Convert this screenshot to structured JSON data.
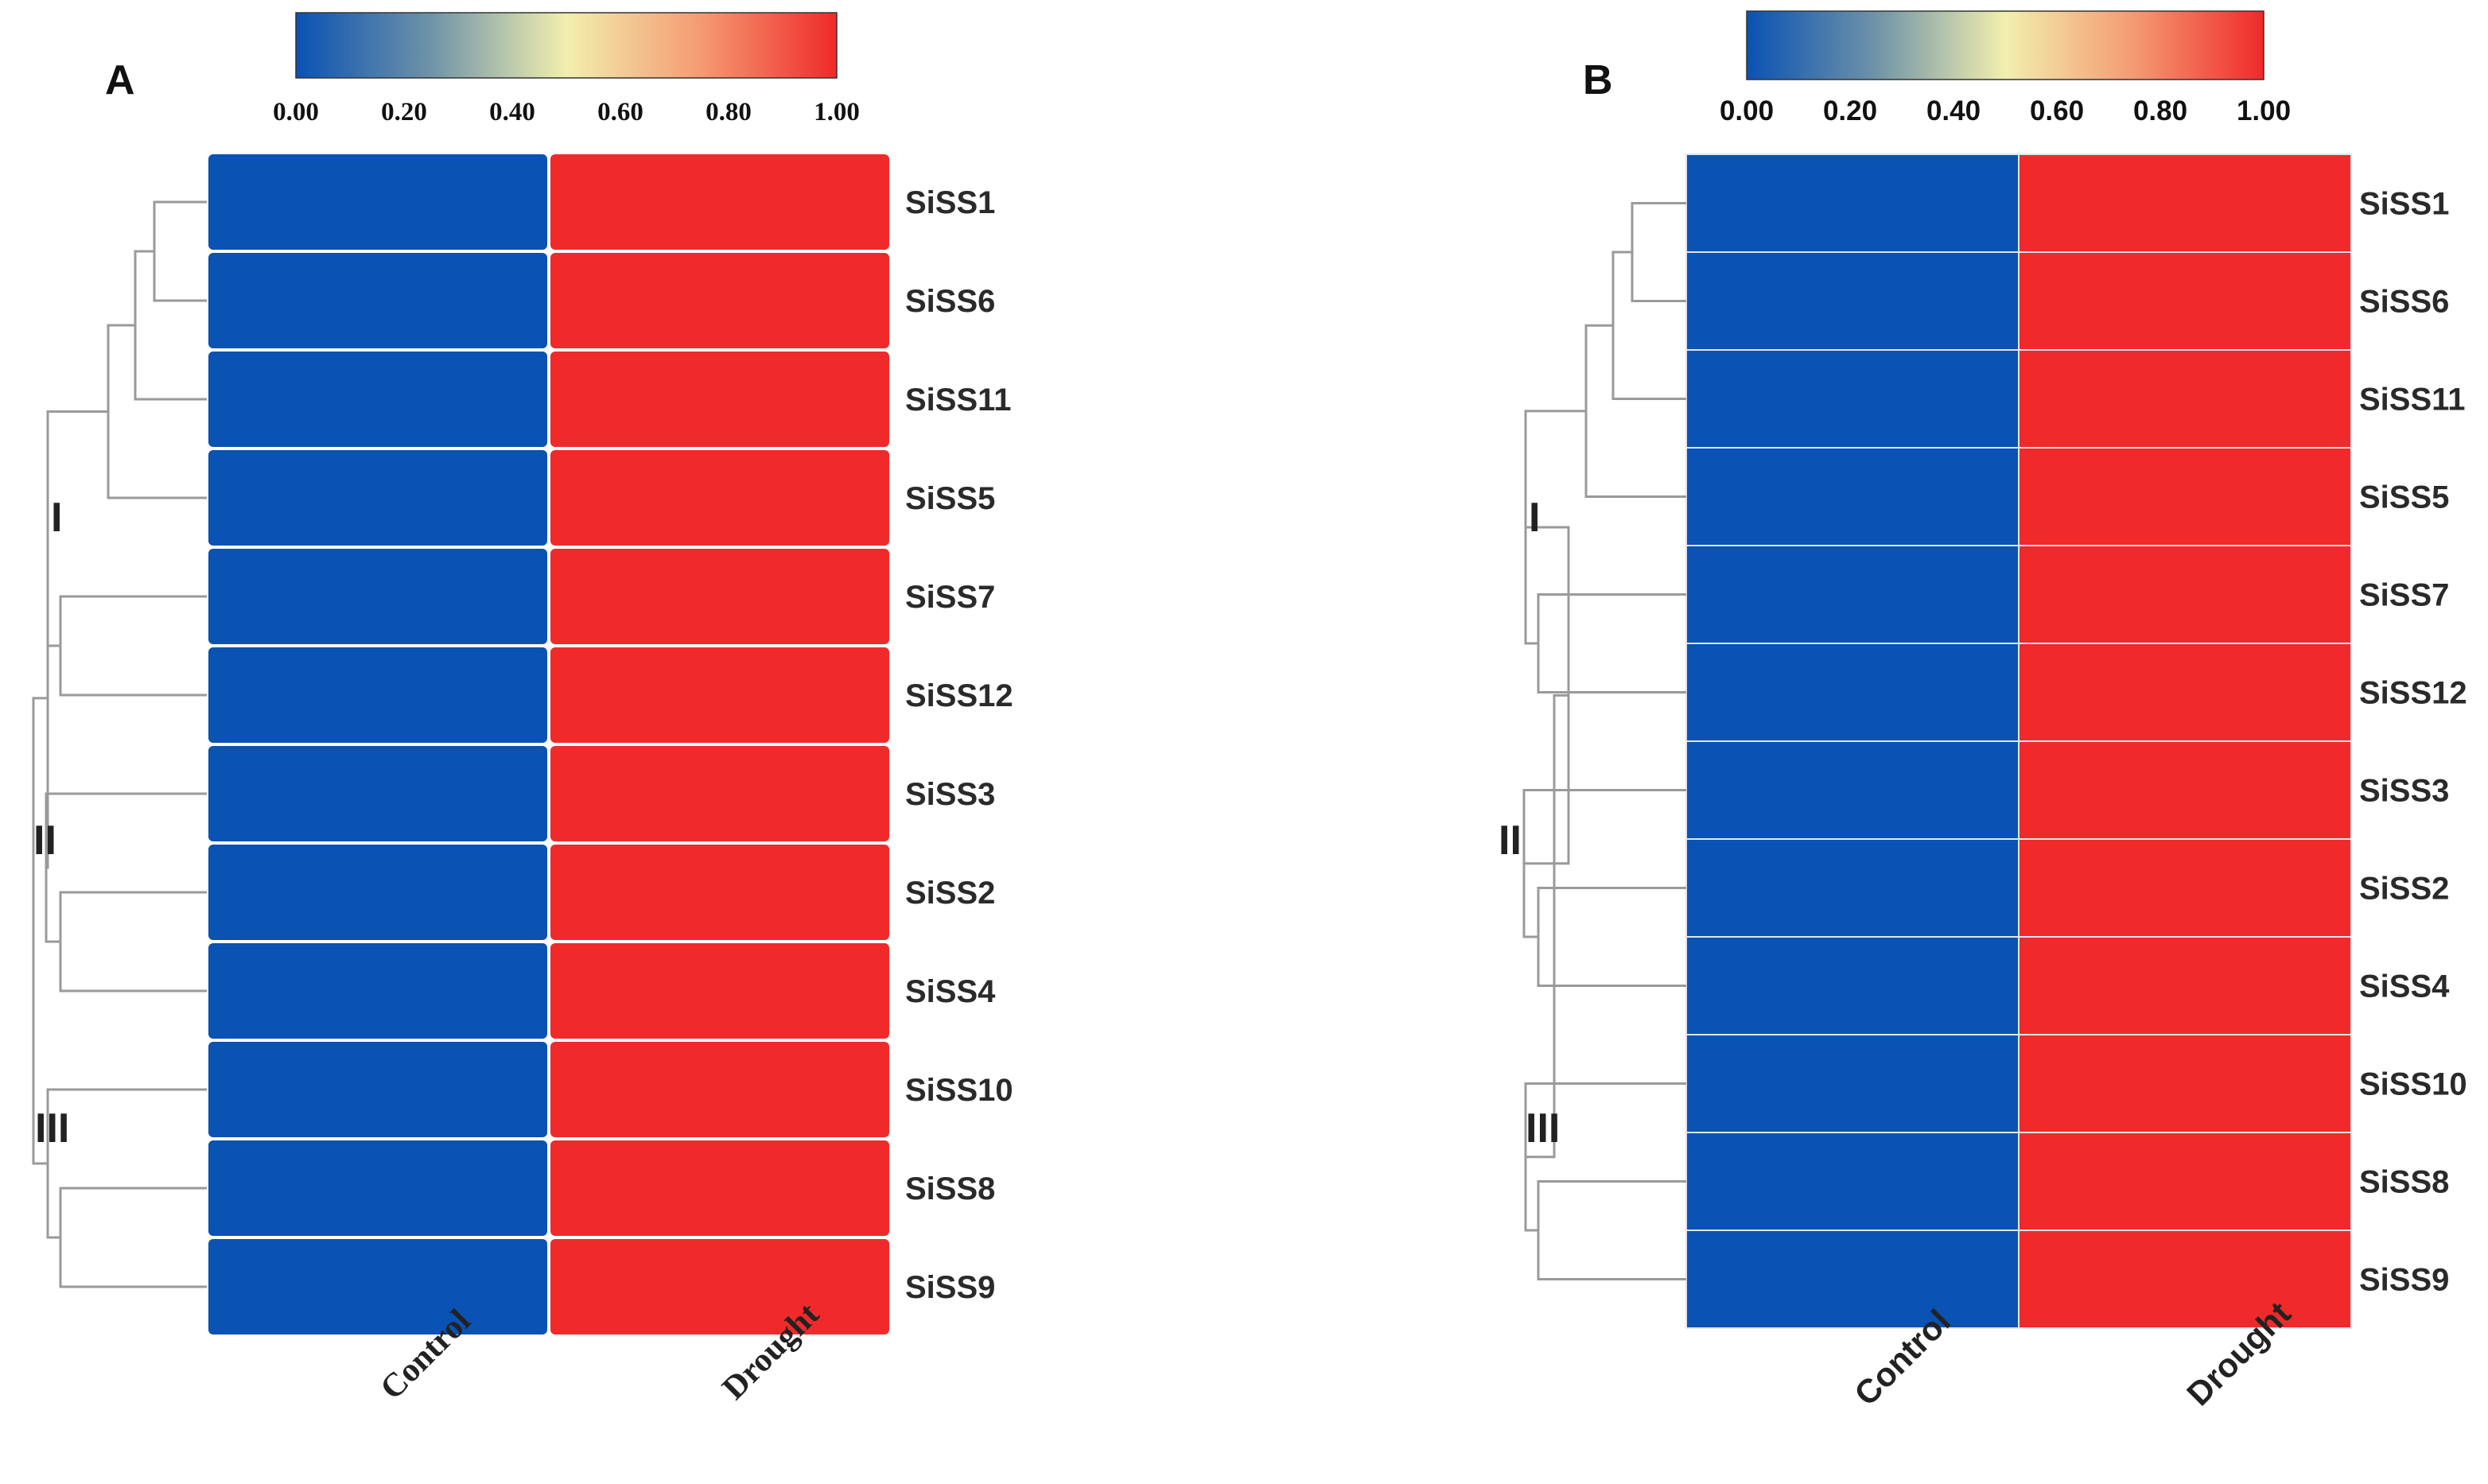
{
  "chart_data": [
    {
      "type": "heatmap",
      "panel": "A",
      "columns": [
        "Control",
        "Drought"
      ],
      "rows": [
        "SiSS1",
        "SiSS6",
        "SiSS11",
        "SiSS5",
        "SiSS7",
        "SiSS12",
        "SiSS3",
        "SiSS2",
        "SiSS4",
        "SiSS10",
        "SiSS8",
        "SiSS9"
      ],
      "values": [
        [
          0,
          1
        ],
        [
          0,
          1
        ],
        [
          0,
          1
        ],
        [
          0,
          1
        ],
        [
          0,
          1
        ],
        [
          0,
          1
        ],
        [
          0,
          1
        ],
        [
          0,
          1
        ],
        [
          0,
          1
        ],
        [
          0,
          1
        ],
        [
          0,
          1
        ],
        [
          0,
          1
        ]
      ],
      "colorbar": {
        "ticks": [
          "0.00",
          "0.20",
          "0.40",
          "0.60",
          "0.80",
          "1.00"
        ],
        "range": [
          0,
          1
        ],
        "colors": [
          "#0a52b3",
          "#f2efae",
          "#f02a2a"
        ]
      },
      "clades": [
        "I",
        "II",
        "III"
      ]
    },
    {
      "type": "heatmap",
      "panel": "B",
      "columns": [
        "Control",
        "Drought"
      ],
      "rows": [
        "SiSS1",
        "SiSS6",
        "SiSS11",
        "SiSS5",
        "SiSS7",
        "SiSS12",
        "SiSS3",
        "SiSS2",
        "SiSS4",
        "SiSS10",
        "SiSS8",
        "SiSS9"
      ],
      "values": [
        [
          0,
          1
        ],
        [
          0,
          1
        ],
        [
          0,
          1
        ],
        [
          0,
          1
        ],
        [
          0,
          1
        ],
        [
          0,
          1
        ],
        [
          0,
          1
        ],
        [
          0,
          1
        ],
        [
          0,
          1
        ],
        [
          0,
          1
        ],
        [
          0,
          1
        ],
        [
          0,
          1
        ]
      ],
      "colorbar": {
        "ticks": [
          "0.00",
          "0.20",
          "0.40",
          "0.60",
          "0.80",
          "1.00"
        ],
        "range": [
          0,
          1
        ],
        "colors": [
          "#0a52b3",
          "#f2efae",
          "#f02a2a"
        ]
      },
      "clades": [
        "I",
        "II",
        "III"
      ]
    }
  ],
  "colors": {
    "low": "#0a52b3",
    "mid": "#f2efae",
    "high": "#f02a2a",
    "dendrogram": "#9a9a9a"
  }
}
